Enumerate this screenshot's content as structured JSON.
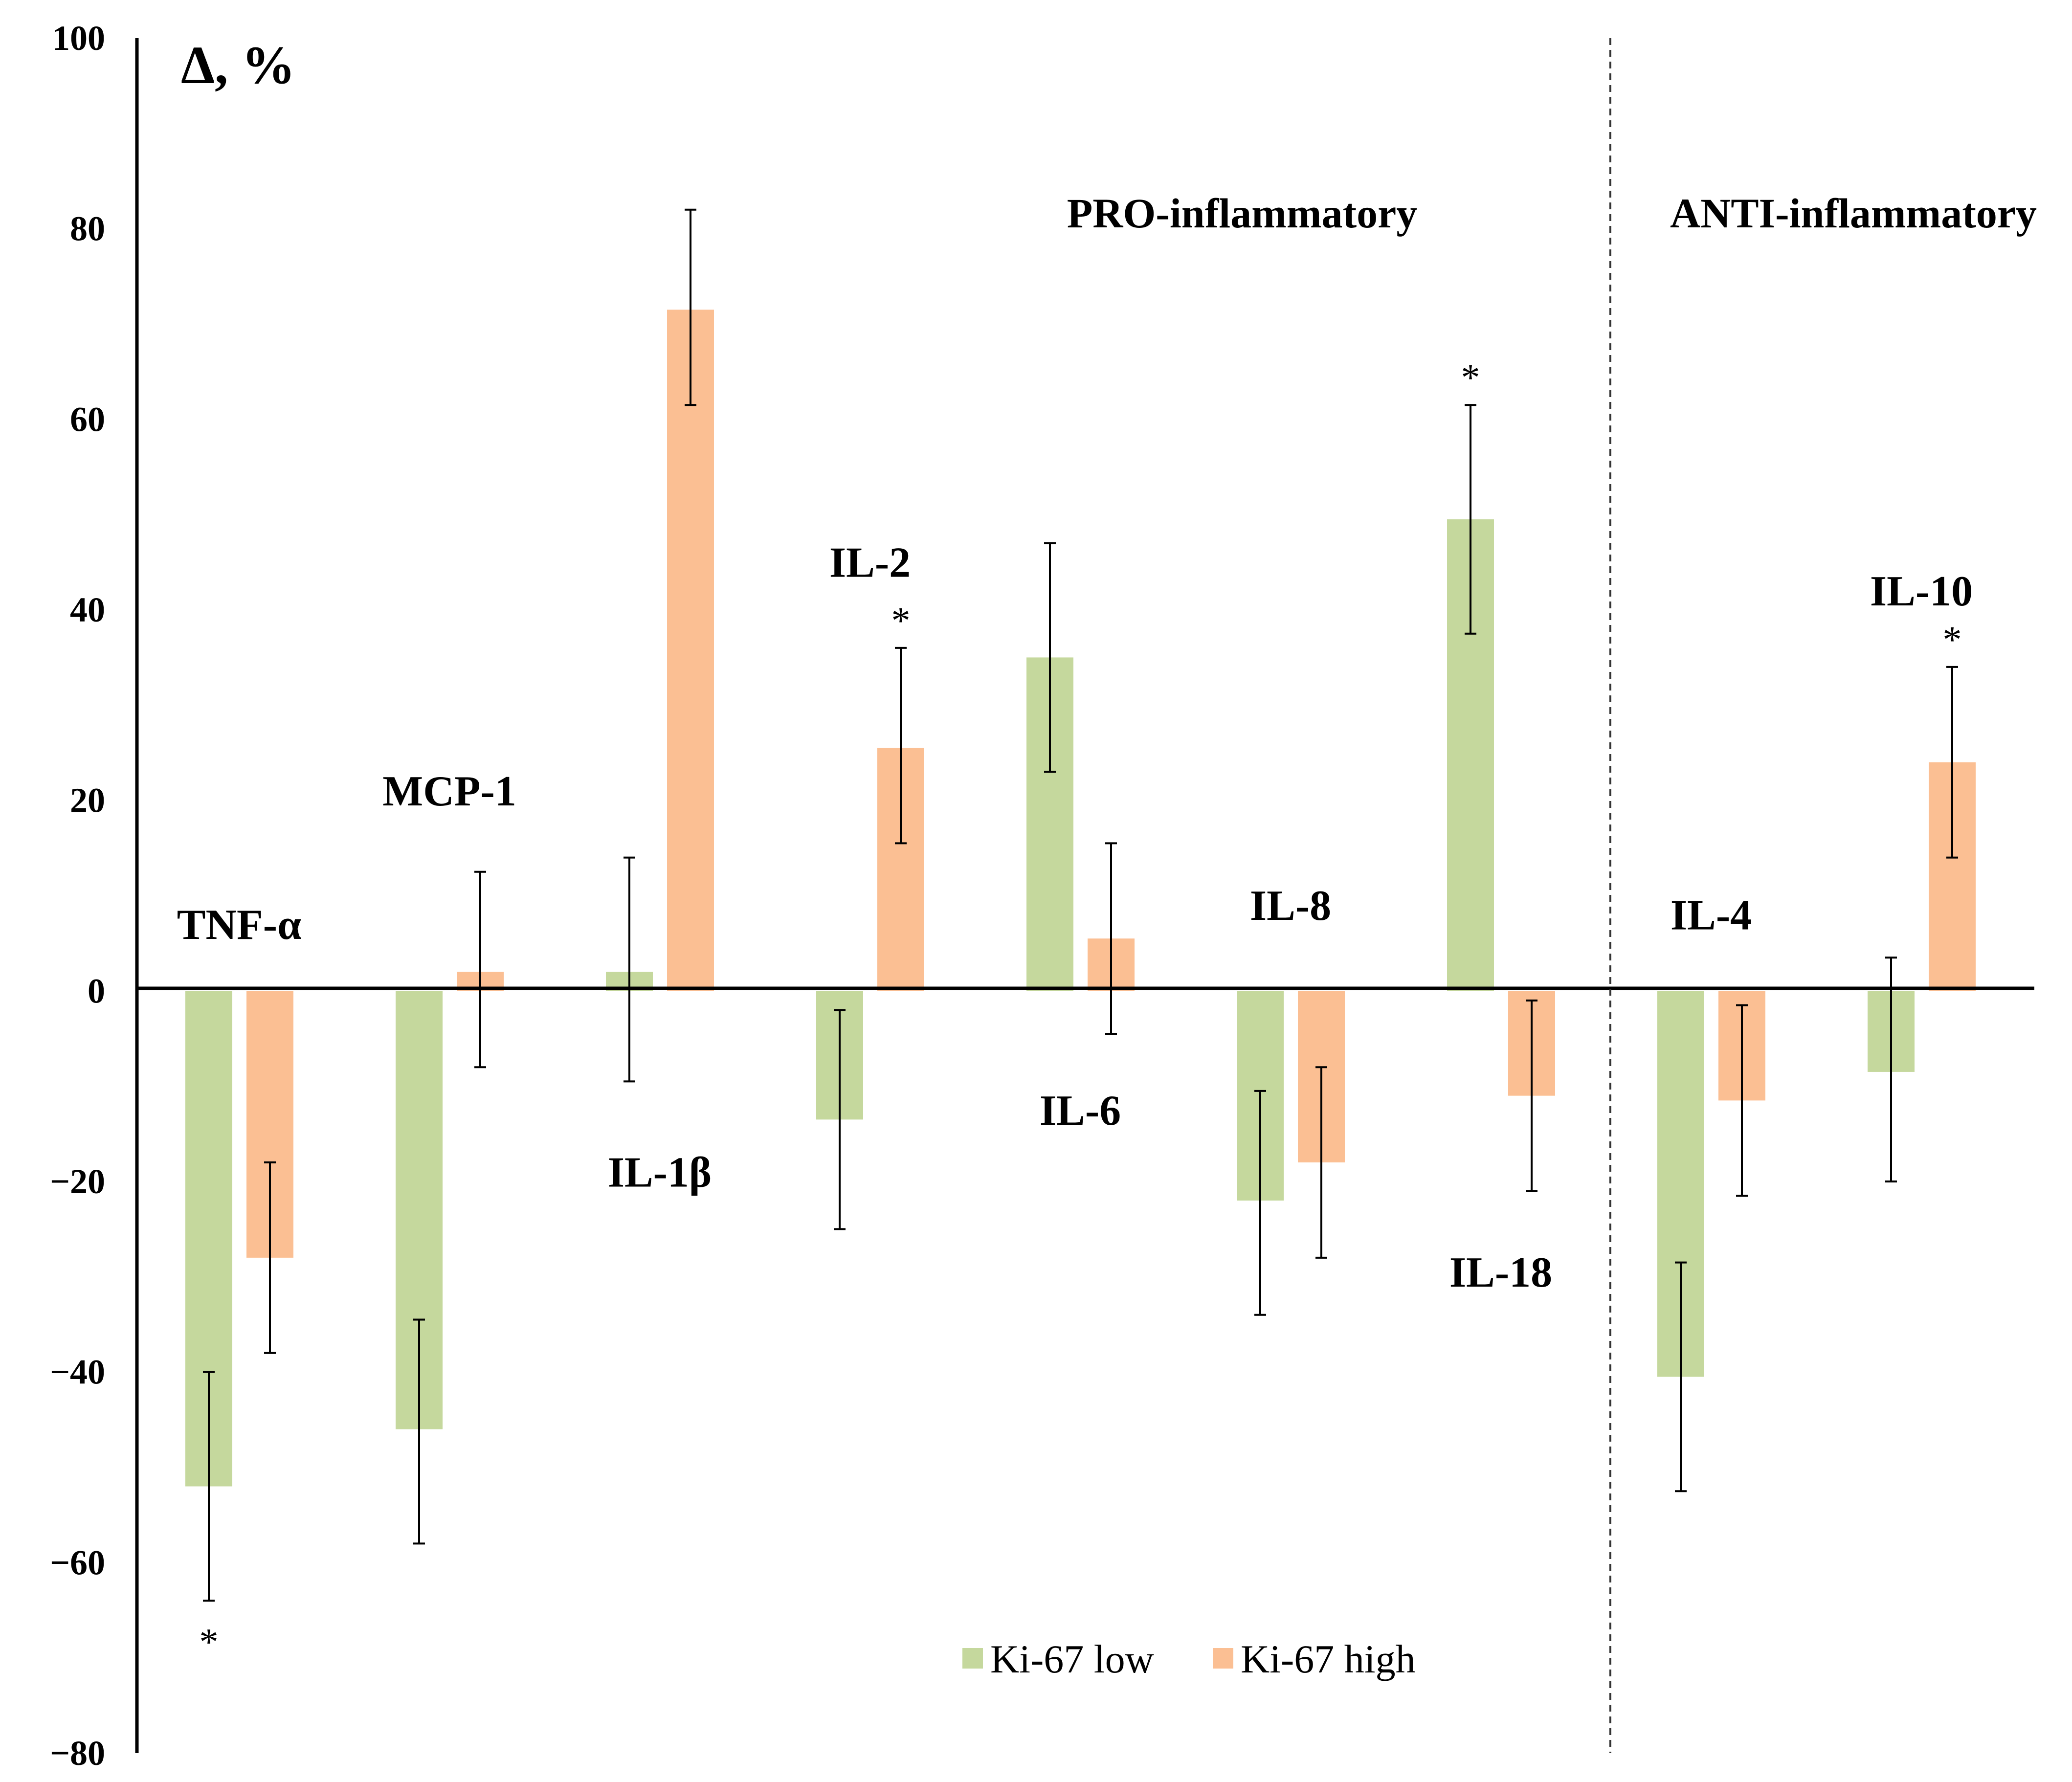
{
  "chart_data": {
    "type": "bar",
    "ylabel": "Δ, %",
    "ylim": [
      -80,
      100
    ],
    "yticks": [
      100,
      80,
      60,
      40,
      20,
      0,
      -20,
      -40,
      -60,
      -80
    ],
    "ytick_labels": [
      "100",
      "80",
      "60",
      "40",
      "20",
      "0",
      "−20",
      "−40",
      "−60",
      "−80"
    ],
    "grid": false,
    "legend_position": "bottom-center",
    "categories": [
      "TNF-α",
      "MCP-1",
      "IL-1β",
      "IL-2",
      "IL-6",
      "IL-8",
      "IL-18",
      "IL-4",
      "IL-10"
    ],
    "series": [
      {
        "name": "Ki-67 low",
        "color": "#c5d89d",
        "values": [
          -52,
          -46,
          2,
          -13.5,
          35,
          -22,
          49.5,
          -40.5,
          -8.5
        ],
        "err_low": [
          -64,
          -58,
          -9.5,
          -25,
          23,
          -34,
          37.5,
          -52.5,
          -20
        ],
        "err_high": [
          -40,
          -34.5,
          14,
          -2,
          47,
          -10.5,
          61.5,
          -28.5,
          3.5
        ],
        "significant": [
          true,
          false,
          false,
          false,
          false,
          false,
          true,
          false,
          false
        ]
      },
      {
        "name": "Ki-67 high",
        "color": "#fbbf93",
        "values": [
          -28,
          2,
          71.5,
          25.5,
          5.5,
          -18,
          -11,
          -11.5,
          24
        ],
        "err_low": [
          -38,
          -8,
          61.5,
          15.5,
          -4.5,
          -28,
          -21,
          -21.5,
          14
        ],
        "err_high": [
          -18,
          12.5,
          82,
          36,
          15.5,
          -8,
          -1,
          -1.5,
          34
        ],
        "significant": [
          false,
          false,
          false,
          true,
          false,
          false,
          false,
          false,
          true
        ]
      }
    ],
    "category_labels": [
      {
        "text": "TNF-α",
        "y": 7
      },
      {
        "text": "MCP-1",
        "y": 21
      },
      {
        "text": "IL-1β",
        "y": -19
      },
      {
        "text": "IL-2",
        "y": 45
      },
      {
        "text": "IL-6",
        "y": -12.5
      },
      {
        "text": "IL-8",
        "y": 9
      },
      {
        "text": "IL-18",
        "y": -29.5
      },
      {
        "text": "IL-4",
        "y": 8
      },
      {
        "text": "IL-10",
        "y": 42
      }
    ],
    "groups": [
      {
        "name": "PRO-inflammatory",
        "categories": [
          "TNF-α",
          "MCP-1",
          "IL-1β",
          "IL-2",
          "IL-6",
          "IL-8",
          "IL-18"
        ]
      },
      {
        "name": "ANTI-inflammatory",
        "categories": [
          "IL-4",
          "IL-10"
        ]
      }
    ],
    "significance_marker": "*"
  }
}
